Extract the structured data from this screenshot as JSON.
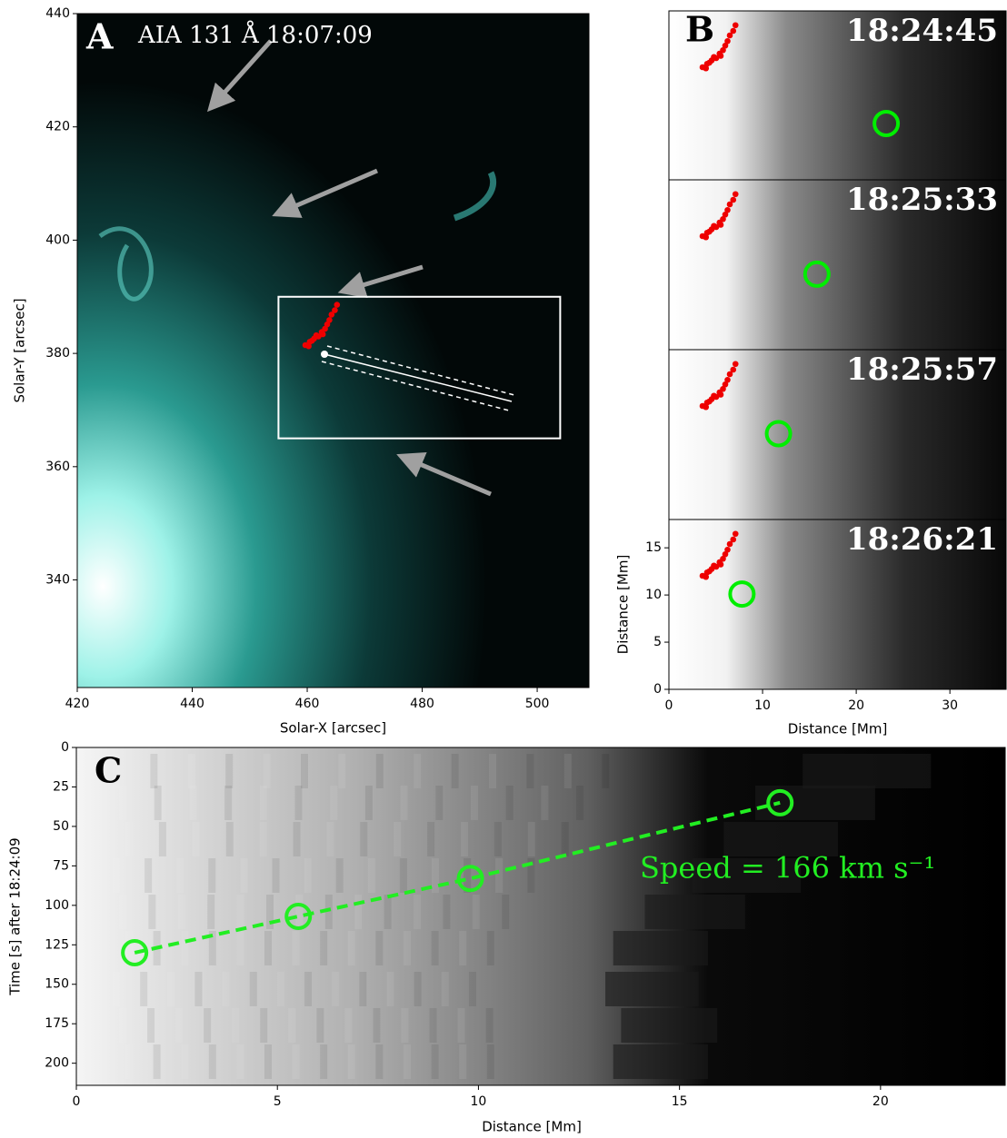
{
  "chart_data": [
    {
      "type": "image",
      "label": "A",
      "title": "AIA 131 Å 18:07:09",
      "x_label": "Solar-X [arcsec]",
      "y_label": "Solar-Y [arcsec]",
      "xlim": [
        420,
        509
      ],
      "ylim": [
        321,
        440
      ],
      "xticks": [
        420,
        440,
        460,
        480,
        500
      ],
      "yticks": [
        340,
        360,
        380,
        400,
        420,
        440
      ],
      "box": {
        "x": [
          455,
          504
        ],
        "y": [
          365,
          390
        ]
      },
      "box_color": "#ffffff"
    },
    {
      "type": "image-stack",
      "label": "B",
      "panels": [
        "18:24:45",
        "18:25:33",
        "18:25:57",
        "18:26:21"
      ],
      "x_label": "Distance [Mm]",
      "y_label": "Distance [Mm]",
      "xlim": [
        0,
        36
      ],
      "ylim": [
        0,
        18
      ],
      "xticks": [
        0,
        10,
        20,
        30
      ],
      "yticks": [
        0,
        5,
        10,
        15
      ],
      "markers": {
        "x": [
          23.2,
          15.8,
          11.7,
          7.8
        ],
        "y": [
          6.0,
          8.0,
          9.1,
          10.1
        ],
        "color": "#00ee00"
      }
    },
    {
      "type": "scatter",
      "label": "C",
      "x_label": "Distance [Mm]",
      "y_label": "Time [s] after 18:24:09",
      "xlim": [
        0,
        23.1
      ],
      "ylim": [
        214,
        0
      ],
      "xticks": [
        0,
        5,
        10,
        15,
        20
      ],
      "yticks": [
        0,
        25,
        50,
        75,
        100,
        125,
        150,
        175,
        200
      ],
      "x": [
        1.45,
        5.52,
        9.8,
        17.5
      ],
      "y": [
        130,
        107,
        83,
        35
      ],
      "color": "#22ee22",
      "annotation": "Speed = 166 km s⁻¹"
    }
  ]
}
